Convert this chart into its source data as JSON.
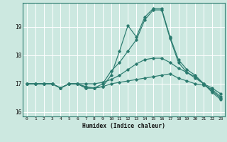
{
  "xlabel": "Humidex (Indice chaleur)",
  "bg_color": "#cce8e0",
  "line_color": "#2b7b6f",
  "grid_color": "#ffffff",
  "xlim": [
    -0.5,
    23.5
  ],
  "ylim": [
    15.85,
    19.85
  ],
  "yticks": [
    16,
    17,
    18,
    19
  ],
  "xticks": [
    0,
    1,
    2,
    3,
    4,
    5,
    6,
    7,
    8,
    9,
    10,
    11,
    12,
    13,
    14,
    15,
    16,
    17,
    18,
    19,
    20,
    21,
    22,
    23
  ],
  "series": [
    [
      17.0,
      17.0,
      17.0,
      17.0,
      16.85,
      17.0,
      17.0,
      16.85,
      16.85,
      16.9,
      17.0,
      17.05,
      17.1,
      17.15,
      17.2,
      17.25,
      17.3,
      17.35,
      17.2,
      17.1,
      17.0,
      16.95,
      16.8,
      16.55
    ],
    [
      17.0,
      17.0,
      17.0,
      17.0,
      16.85,
      17.0,
      17.0,
      17.0,
      17.0,
      17.05,
      17.15,
      17.3,
      17.5,
      17.7,
      17.85,
      17.9,
      17.9,
      17.75,
      17.55,
      17.4,
      17.2,
      17.0,
      16.85,
      16.65
    ],
    [
      17.0,
      17.0,
      17.0,
      17.0,
      16.85,
      17.0,
      17.0,
      16.9,
      16.85,
      17.0,
      17.45,
      17.75,
      18.15,
      18.55,
      19.25,
      19.6,
      19.6,
      18.6,
      17.75,
      17.4,
      17.25,
      17.0,
      16.75,
      16.5
    ],
    [
      17.0,
      17.0,
      17.0,
      17.0,
      16.85,
      17.0,
      17.0,
      16.85,
      16.85,
      16.9,
      17.3,
      18.15,
      19.05,
      18.65,
      19.35,
      19.65,
      19.65,
      18.65,
      17.85,
      17.5,
      17.3,
      17.0,
      16.7,
      16.45
    ]
  ]
}
